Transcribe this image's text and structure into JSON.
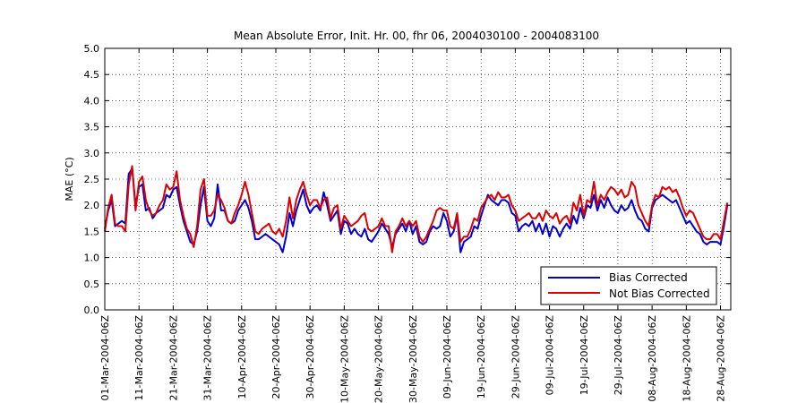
{
  "chart_data": {
    "type": "line",
    "title": "Mean Absolute Error, Init. Hr. 00, fhr 06, 2004030100 - 2004083100",
    "xlabel": "",
    "ylabel": "MAE (°C)",
    "ylim": [
      0,
      5
    ],
    "yticks": [
      "0.0",
      "0.5",
      "1.0",
      "1.5",
      "2.0",
      "2.5",
      "3.0",
      "3.5",
      "4.0",
      "4.5",
      "5.0"
    ],
    "xlim_days": [
      0,
      183
    ],
    "xticks": [
      {
        "day": 0,
        "label": "01-Mar-2004-06Z"
      },
      {
        "day": 10,
        "label": "11-Mar-2004-06Z"
      },
      {
        "day": 20,
        "label": "21-Mar-2004-06Z"
      },
      {
        "day": 30,
        "label": "31-Mar-2004-06Z"
      },
      {
        "day": 40,
        "label": "10-Apr-2004-06Z"
      },
      {
        "day": 50,
        "label": "20-Apr-2004-06Z"
      },
      {
        "day": 60,
        "label": "30-Apr-2004-06Z"
      },
      {
        "day": 70,
        "label": "10-May-2004-06Z"
      },
      {
        "day": 80,
        "label": "20-May-2004-06Z"
      },
      {
        "day": 90,
        "label": "30-May-2004-06Z"
      },
      {
        "day": 100,
        "label": "09-Jun-2004-06Z"
      },
      {
        "day": 110,
        "label": "19-Jun-2004-06Z"
      },
      {
        "day": 120,
        "label": "29-Jun-2004-06Z"
      },
      {
        "day": 130,
        "label": "09-Jul-2004-06Z"
      },
      {
        "day": 140,
        "label": "19-Jul-2004-06Z"
      },
      {
        "day": 150,
        "label": "29-Jul-2004-06Z"
      },
      {
        "day": 160,
        "label": "08-Aug-2004-06Z"
      },
      {
        "day": 170,
        "label": "18-Aug-2004-06Z"
      },
      {
        "day": 180,
        "label": "28-Aug-2004-06Z"
      }
    ],
    "grid": true,
    "legend_position": "bottom-right",
    "series": [
      {
        "name": "Bias Corrected",
        "color": "#0000cc",
        "x_start_day": 0,
        "values": [
          1.55,
          1.9,
          2.1,
          1.6,
          1.65,
          1.7,
          1.65,
          2.6,
          2.7,
          2.0,
          2.35,
          2.4,
          1.9,
          1.95,
          1.75,
          1.85,
          1.9,
          1.95,
          2.2,
          2.15,
          2.3,
          2.35,
          2.0,
          1.7,
          1.5,
          1.3,
          1.25,
          1.5,
          2.0,
          2.35,
          1.7,
          1.6,
          1.75,
          2.4,
          1.9,
          1.9,
          1.7,
          1.65,
          1.7,
          1.9,
          2.0,
          2.1,
          1.95,
          1.7,
          1.35,
          1.35,
          1.4,
          1.45,
          1.4,
          1.35,
          1.3,
          1.25,
          1.1,
          1.4,
          1.85,
          1.6,
          1.9,
          2.1,
          2.3,
          2.0,
          1.85,
          1.95,
          2.0,
          1.9,
          2.25,
          2.0,
          1.7,
          1.8,
          1.9,
          1.45,
          1.7,
          1.65,
          1.45,
          1.55,
          1.45,
          1.4,
          1.55,
          1.35,
          1.3,
          1.4,
          1.5,
          1.65,
          1.55,
          1.45,
          1.2,
          1.45,
          1.55,
          1.65,
          1.5,
          1.7,
          1.45,
          1.6,
          1.3,
          1.25,
          1.3,
          1.5,
          1.6,
          1.55,
          1.6,
          1.85,
          1.7,
          1.4,
          1.5,
          1.8,
          1.1,
          1.3,
          1.35,
          1.4,
          1.6,
          1.55,
          1.8,
          2.0,
          2.2,
          2.1,
          2.05,
          2.0,
          2.1,
          2.1,
          2.05,
          1.85,
          1.8,
          1.5,
          1.6,
          1.65,
          1.6,
          1.7,
          1.5,
          1.65,
          1.45,
          1.65,
          1.4,
          1.6,
          1.55,
          1.4,
          1.55,
          1.65,
          1.55,
          1.8,
          1.65,
          1.95,
          1.75,
          2.0,
          1.95,
          2.2,
          1.9,
          2.1,
          1.95,
          2.15,
          2.0,
          1.9,
          1.85,
          2.0,
          1.9,
          1.95,
          2.1,
          1.9,
          1.75,
          1.7,
          1.55,
          1.5,
          1.95,
          2.1,
          2.15,
          2.2,
          2.15,
          2.1,
          2.05,
          2.1,
          1.95,
          1.8,
          1.65,
          1.7,
          1.6,
          1.5,
          1.45,
          1.3,
          1.25,
          1.3,
          1.3,
          1.3,
          1.25,
          1.6,
          2.0
        ]
      },
      {
        "name": "Not Bias Corrected",
        "color": "#dd0000",
        "x_start_day": 0,
        "values": [
          1.5,
          1.95,
          2.2,
          1.65,
          1.6,
          1.6,
          1.5,
          2.4,
          2.75,
          1.9,
          2.45,
          2.55,
          2.1,
          1.9,
          1.8,
          1.85,
          2.0,
          2.1,
          2.4,
          2.3,
          2.35,
          2.65,
          2.1,
          1.8,
          1.55,
          1.45,
          1.2,
          1.6,
          2.3,
          2.5,
          1.8,
          1.8,
          1.9,
          2.2,
          2.1,
          1.95,
          1.7,
          1.65,
          1.85,
          2.0,
          2.2,
          2.45,
          2.2,
          1.85,
          1.5,
          1.45,
          1.55,
          1.6,
          1.65,
          1.5,
          1.45,
          1.55,
          1.4,
          1.7,
          2.15,
          1.75,
          2.1,
          2.3,
          2.45,
          2.2,
          2.0,
          2.1,
          2.1,
          1.95,
          2.1,
          2.15,
          1.75,
          1.95,
          2.0,
          1.55,
          1.8,
          1.7,
          1.6,
          1.65,
          1.7,
          1.8,
          1.85,
          1.55,
          1.5,
          1.55,
          1.6,
          1.75,
          1.6,
          1.6,
          1.1,
          1.5,
          1.6,
          1.75,
          1.6,
          1.7,
          1.6,
          1.7,
          1.4,
          1.3,
          1.4,
          1.55,
          1.7,
          1.9,
          1.95,
          1.9,
          1.9,
          1.6,
          1.55,
          1.85,
          1.3,
          1.4,
          1.4,
          1.55,
          1.75,
          1.7,
          1.95,
          2.05,
          2.15,
          2.2,
          2.1,
          2.25,
          2.15,
          2.15,
          2.2,
          2.0,
          1.9,
          1.7,
          1.75,
          1.8,
          1.85,
          1.75,
          1.75,
          1.85,
          1.7,
          1.9,
          1.8,
          1.75,
          1.85,
          1.65,
          1.75,
          1.8,
          1.65,
          2.05,
          1.9,
          2.2,
          1.8,
          2.1,
          2.05,
          2.45,
          2.0,
          2.2,
          2.1,
          2.25,
          2.35,
          2.3,
          2.2,
          2.3,
          2.15,
          2.2,
          2.45,
          2.35,
          2.0,
          1.85,
          1.7,
          1.6,
          2.0,
          2.2,
          2.15,
          2.35,
          2.3,
          2.35,
          2.25,
          2.3,
          2.15,
          1.95,
          1.8,
          1.9,
          1.85,
          1.7,
          1.55,
          1.4,
          1.35,
          1.35,
          1.45,
          1.45,
          1.35,
          1.7,
          2.05
        ]
      }
    ]
  }
}
